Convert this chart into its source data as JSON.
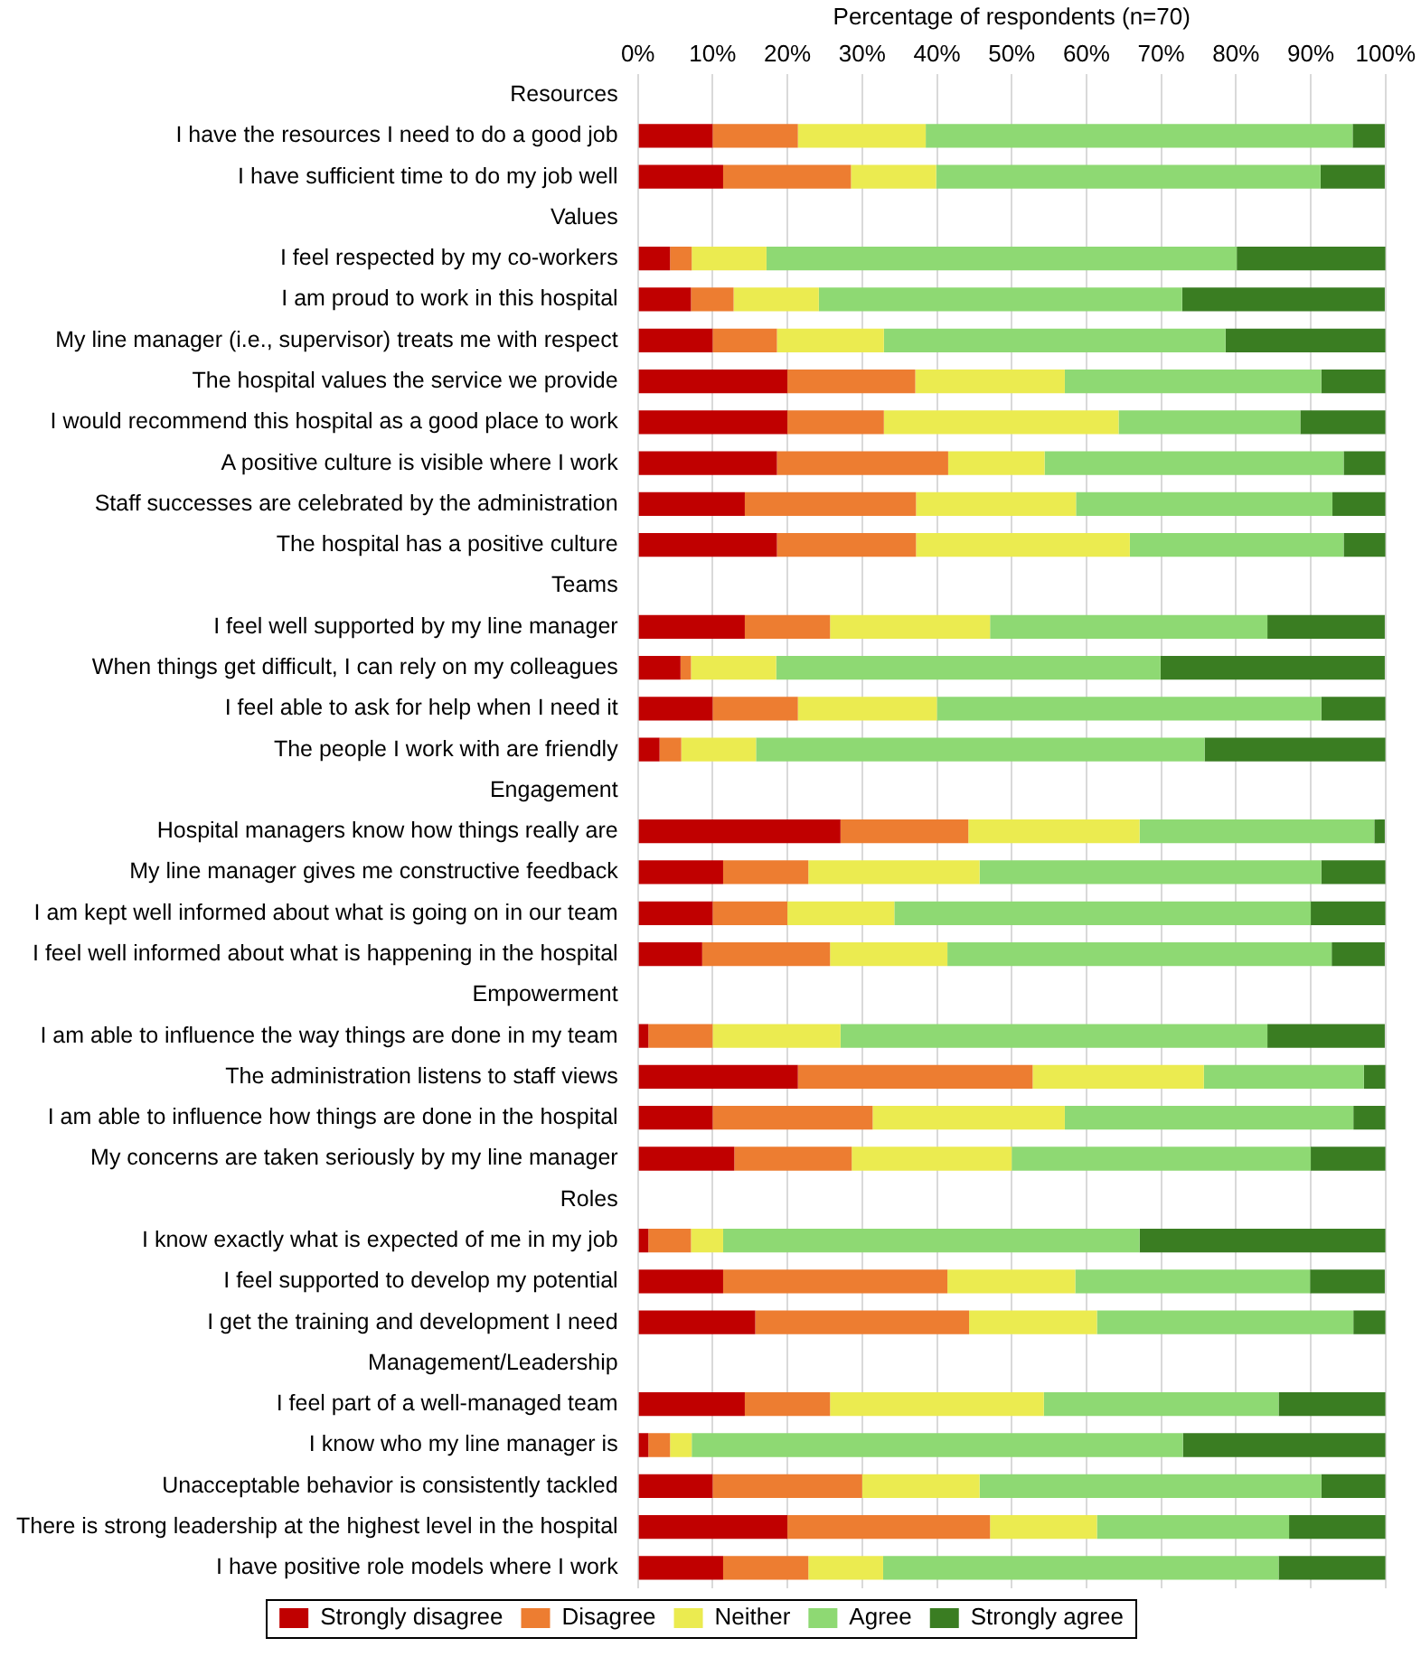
{
  "chart_data": {
    "type": "bar",
    "orientation": "horizontal",
    "stacked": true,
    "xlabel": "Percentage of respondents (n=70)",
    "categories": [
      "Resources",
      "I have the resources I need to do a good job",
      "I have sufficient time to do my job well",
      "Values",
      "I feel respected by my co-workers",
      "I am proud to work in this hospital",
      "My line manager (i.e., supervisor) treats me with respect",
      "The hospital values the service we provide",
      "I would recommend this hospital as a good place to work",
      "A positive culture is visible where I work",
      "Staff successes are celebrated by the administration",
      "The hospital has a positive culture",
      "Teams",
      "I feel well supported by my line manager",
      "When things get difficult, I can rely on my colleagues",
      "I feel able to ask for help when I need it",
      "The people I work with are friendly",
      "Engagement",
      "Hospital managers know how things really are",
      "My line manager gives me constructive feedback",
      "I am kept well informed about what is going on in our team",
      "I feel well informed about what is happening in the hospital",
      "Empowerment",
      "I am able to influence the way things are done in my team",
      "The administration listens to staff views",
      "I am able to influence how things are done in the hospital",
      "My concerns are taken seriously by my line manager",
      "Roles",
      "I know exactly what is expected of me in my job",
      "I feel supported to develop my potential",
      "I get the training and development I need",
      "Management/Leadership",
      "I feel part of a well-managed team",
      "I know who my line manager is",
      "Unacceptable behavior is consistently tackled",
      "There is strong leadership at the highest level in the hospital",
      "I have positive role models where I work"
    ],
    "series": [
      {
        "name": "Strongly disagree",
        "color": "#c00000",
        "values": [
          null,
          10,
          11.4,
          null,
          4.3,
          7.1,
          10,
          20,
          20,
          18.6,
          14.3,
          18.6,
          null,
          14.3,
          5.7,
          10,
          2.9,
          null,
          27.1,
          11.4,
          10,
          8.6,
          null,
          1.4,
          21.4,
          10,
          12.9,
          null,
          1.4,
          11.4,
          15.7,
          null,
          14.3,
          1.4,
          10,
          20,
          11.4
        ]
      },
      {
        "name": "Disagree",
        "color": "#ed7d31",
        "values": [
          null,
          11.4,
          17.1,
          null,
          2.9,
          5.7,
          8.6,
          17.1,
          12.9,
          22.9,
          22.9,
          18.6,
          null,
          11.4,
          1.4,
          11.4,
          2.9,
          null,
          17.1,
          11.4,
          10,
          17.1,
          null,
          8.6,
          31.4,
          21.4,
          15.7,
          null,
          5.7,
          30,
          28.6,
          null,
          11.4,
          2.9,
          20,
          27.1,
          11.4
        ]
      },
      {
        "name": "Neither",
        "color": "#ebeb50",
        "values": [
          null,
          17.1,
          11.4,
          null,
          10,
          11.4,
          14.3,
          20,
          31.4,
          12.9,
          21.4,
          28.6,
          null,
          21.4,
          11.4,
          18.6,
          10,
          null,
          22.9,
          22.9,
          14.3,
          15.7,
          null,
          17.1,
          22.9,
          25.7,
          21.4,
          null,
          4.3,
          17.1,
          17.1,
          null,
          28.6,
          2.9,
          15.7,
          14.3,
          10
        ]
      },
      {
        "name": "Agree",
        "color": "#8ed973",
        "values": [
          null,
          57.1,
          51.4,
          null,
          62.9,
          48.6,
          45.7,
          34.3,
          24.3,
          40,
          34.3,
          28.6,
          null,
          37.1,
          51.4,
          51.4,
          60,
          null,
          31.4,
          45.7,
          55.7,
          51.4,
          null,
          57.1,
          21.4,
          38.6,
          40,
          null,
          55.7,
          31.4,
          34.3,
          null,
          31.4,
          65.7,
          45.7,
          25.7,
          52.9
        ]
      },
      {
        "name": "Strongly agree",
        "color": "#3a7d22",
        "values": [
          null,
          4.3,
          8.6,
          null,
          19.9,
          27.1,
          21.4,
          8.6,
          11.4,
          5.6,
          7.1,
          5.6,
          null,
          15.7,
          30,
          8.6,
          24.2,
          null,
          1.4,
          8.6,
          10,
          7.1,
          null,
          15.7,
          2.9,
          4.3,
          10,
          null,
          32.9,
          10,
          4.3,
          null,
          14.3,
          27.1,
          8.6,
          12.9,
          14.3
        ]
      }
    ],
    "xlim": [
      0,
      100
    ],
    "xticks": [
      {
        "value": 0,
        "label": "0%"
      },
      {
        "value": 10,
        "label": "10%"
      },
      {
        "value": 20,
        "label": "20%"
      },
      {
        "value": 30,
        "label": "30%"
      },
      {
        "value": 40,
        "label": "40%"
      },
      {
        "value": 50,
        "label": "50%"
      },
      {
        "value": 60,
        "label": "60%"
      },
      {
        "value": 70,
        "label": "70%"
      },
      {
        "value": 80,
        "label": "80%"
      },
      {
        "value": 90,
        "label": "90%"
      },
      {
        "value": 100,
        "label": "100%"
      }
    ],
    "grid": "x",
    "legend": "bottom"
  }
}
